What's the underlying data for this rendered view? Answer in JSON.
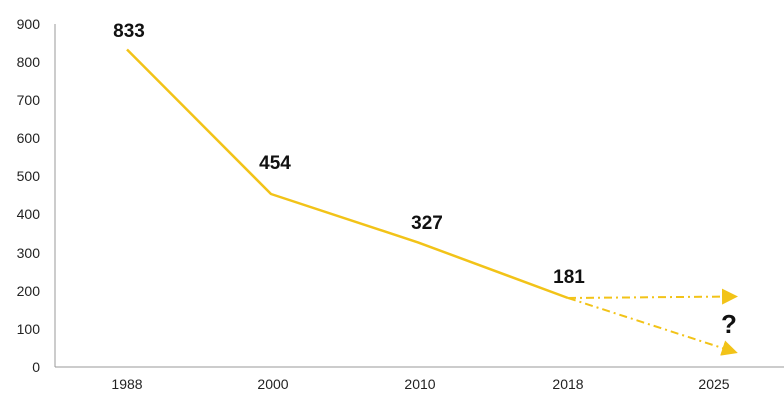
{
  "chart_data": {
    "type": "line",
    "categories": [
      "1988",
      "2000",
      "2010",
      "2018",
      "2025"
    ],
    "series": [
      {
        "values": [
          833,
          454,
          327,
          181,
          null
        ]
      }
    ],
    "projections": [
      {
        "from": "2018",
        "to": "2025",
        "from_value": 181,
        "to_value": 185
      },
      {
        "from": "2018",
        "to": "2025",
        "from_value": 181,
        "to_value": 40
      }
    ],
    "data_labels": [
      "833",
      "454",
      "327",
      "181"
    ],
    "annotation": "?",
    "yticks": [
      "0",
      "100",
      "200",
      "300",
      "400",
      "500",
      "600",
      "700",
      "800",
      "900"
    ],
    "ylim": [
      0,
      900
    ],
    "grid": false,
    "colors": {
      "line": "#F2C318",
      "projection": "#F2C318",
      "axis": "#999999"
    }
  }
}
